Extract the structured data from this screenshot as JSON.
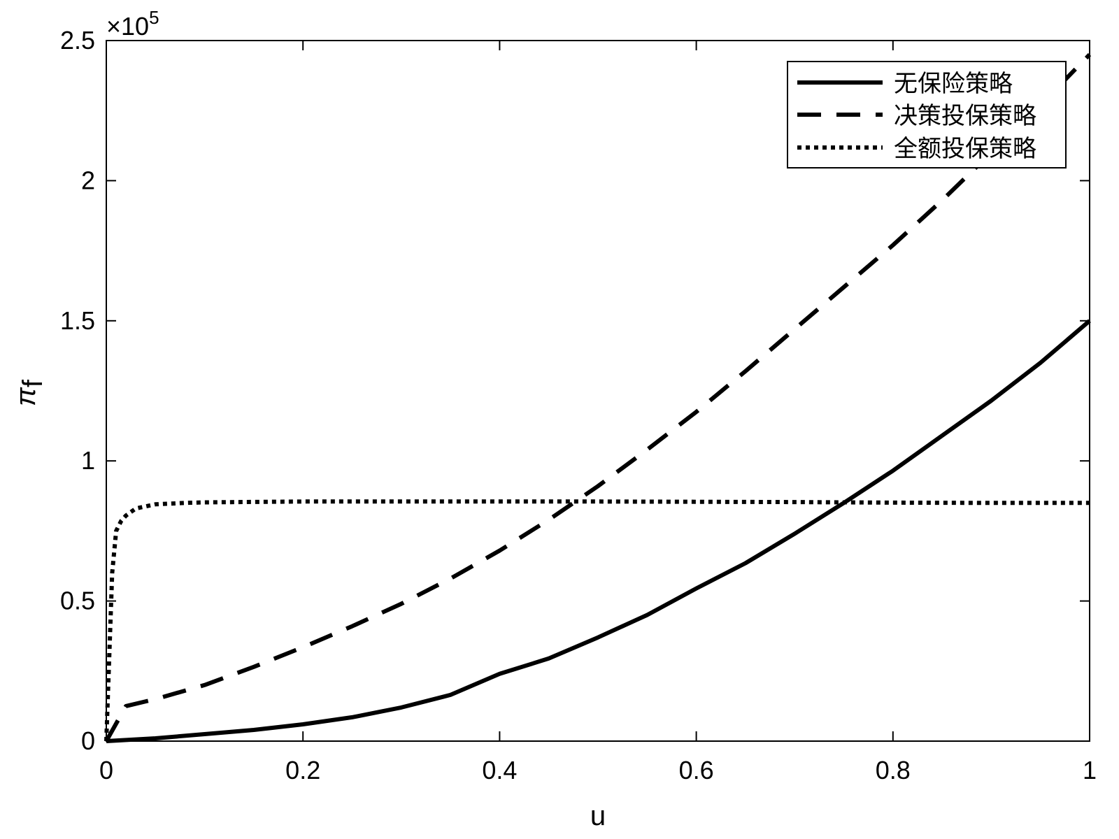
{
  "chart_data": {
    "type": "line",
    "title": "",
    "xlabel": "u",
    "ylabel": "π",
    "ylabel_subscript": "f",
    "y_exponent_base": "×10",
    "y_exponent_power": "5",
    "xlim": [
      0,
      1
    ],
    "ylim": [
      0,
      250000
    ],
    "x_ticks": [
      0,
      0.2,
      0.4,
      0.6,
      0.8,
      1
    ],
    "x_tick_labels": [
      "0",
      "0.2",
      "0.4",
      "0.6",
      "0.8",
      "1"
    ],
    "y_ticks": [
      0,
      50000,
      100000,
      150000,
      200000,
      250000
    ],
    "y_tick_labels": [
      "0",
      "0.5",
      "1",
      "1.5",
      "2",
      "2.5"
    ],
    "grid": false,
    "legend_position": "top-right",
    "series": [
      {
        "name": "无保险策略",
        "style": "solid",
        "color": "#000000",
        "x": [
          0,
          0.05,
          0.1,
          0.15,
          0.2,
          0.25,
          0.3,
          0.35,
          0.4,
          0.45,
          0.5,
          0.55,
          0.6,
          0.65,
          0.7,
          0.75,
          0.8,
          0.85,
          0.9,
          0.95,
          1.0
        ],
        "y": [
          0,
          1000,
          2500,
          4000,
          6000,
          8500,
          12000,
          16500,
          24000,
          29500,
          37000,
          45000,
          54500,
          63500,
          74000,
          85000,
          96500,
          109000,
          121500,
          135000,
          150000
        ]
      },
      {
        "name": "决策投保策略",
        "style": "dashed",
        "color": "#000000",
        "x": [
          0,
          0.02,
          0.05,
          0.1,
          0.15,
          0.2,
          0.25,
          0.3,
          0.35,
          0.4,
          0.45,
          0.5,
          0.55,
          0.6,
          0.65,
          0.7,
          0.75,
          0.8,
          0.85,
          0.9,
          0.95,
          1.0
        ],
        "y": [
          0,
          12500,
          15000,
          20000,
          26500,
          33500,
          41000,
          49000,
          58000,
          68000,
          79000,
          91000,
          104000,
          117500,
          132000,
          147000,
          162000,
          177000,
          193000,
          210000,
          227000,
          245000
        ]
      },
      {
        "name": "全额投保策略",
        "style": "dotted",
        "color": "#000000",
        "x": [
          0,
          0.003,
          0.006,
          0.01,
          0.015,
          0.02,
          0.03,
          0.05,
          0.08,
          0.1,
          0.2,
          0.3,
          0.4,
          0.5,
          0.6,
          0.7,
          0.8,
          0.9,
          1.0
        ],
        "y": [
          0,
          30000,
          60000,
          75000,
          78500,
          80500,
          83000,
          84500,
          85000,
          85200,
          85500,
          85500,
          85500,
          85500,
          85400,
          85300,
          85100,
          85000,
          85000
        ]
      }
    ]
  }
}
